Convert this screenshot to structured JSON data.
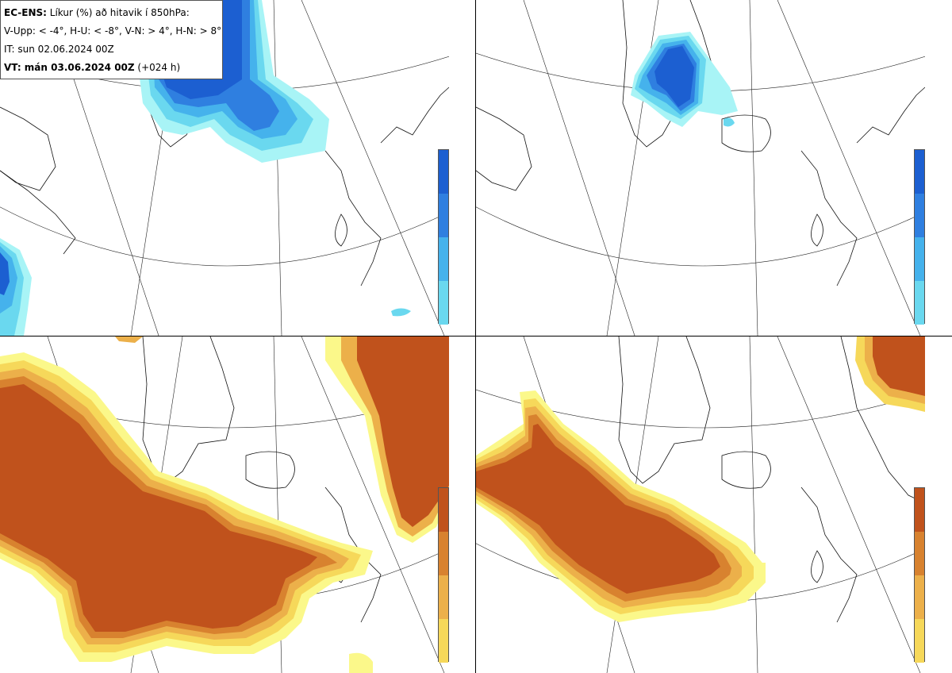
{
  "header": {
    "model_label": "EC-ENS:",
    "title_rest": " Líkur (%) að hitavik í 850hPa:",
    "thresholds": "V-Upp: < -4°, H-U: < -8°, V-N: > 4°, H-N: > 8°",
    "initial_time": "IT: sun 02.06.2024 00Z",
    "valid_label": "VT: mán 03.06.2024 00Z",
    "valid_rest": " (+024 h)"
  },
  "panels": [
    {
      "id": "tl",
      "variable": "V-Upp",
      "condition": "< -4°",
      "palette": "cold"
    },
    {
      "id": "tr",
      "variable": "H-U",
      "condition": "< -8°",
      "palette": "cold"
    },
    {
      "id": "bl",
      "variable": "V-N",
      "condition": "> 4°",
      "palette": "warm"
    },
    {
      "id": "br",
      "variable": "H-N",
      "condition": "> 8°",
      "palette": "warm"
    }
  ],
  "colorbars": {
    "cold": {
      "ticks": [
        "100",
        "95",
        "65",
        "35",
        "5"
      ],
      "colors": [
        "#1c5fd1",
        "#2f7fe0",
        "#45b2ec",
        "#6ad8ef",
        "#a8f4f6"
      ]
    },
    "warm": {
      "ticks": [
        "100",
        "95",
        "65",
        "35",
        "5"
      ],
      "colors": [
        "#c0521c",
        "#d8822f",
        "#ecb04a",
        "#f6d85a",
        "#fbf88a"
      ]
    }
  }
}
